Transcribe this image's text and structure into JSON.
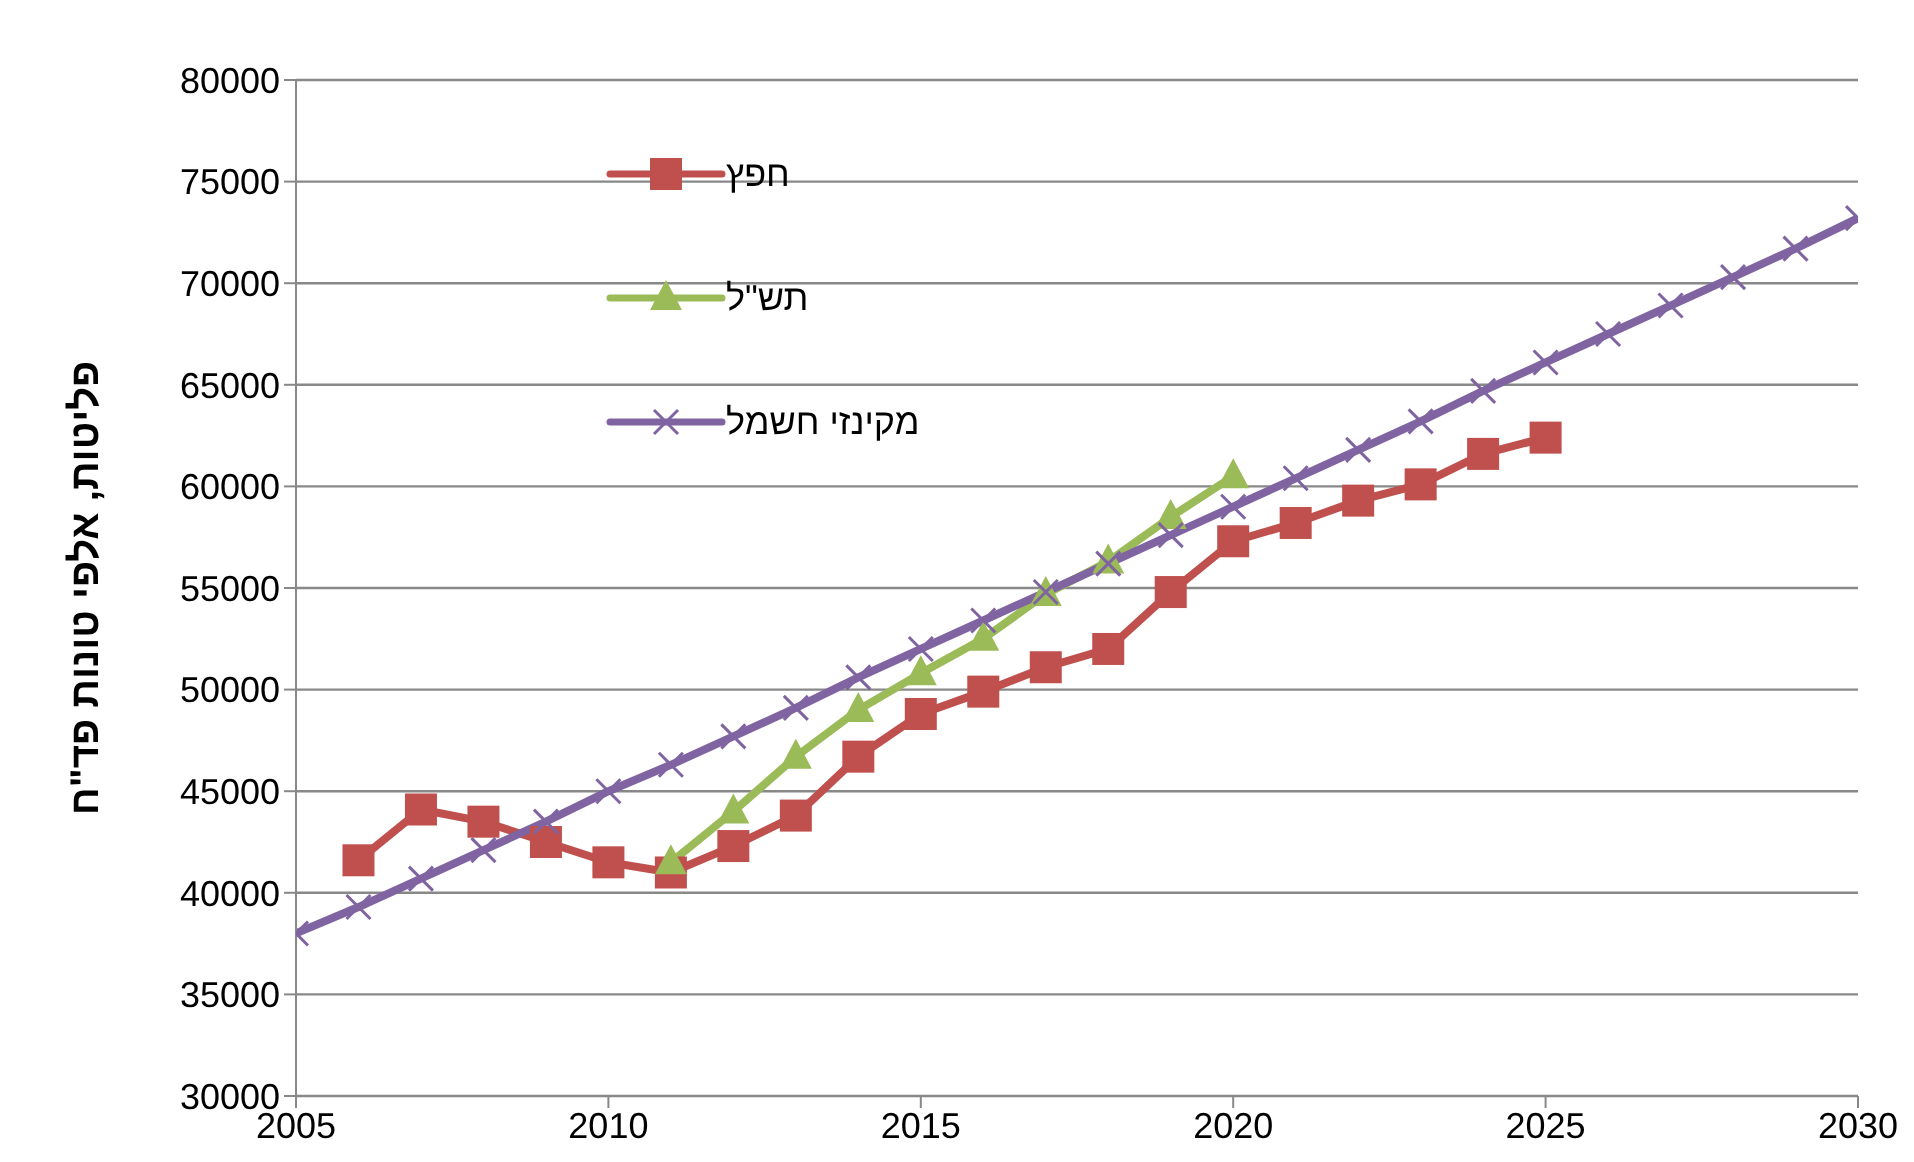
{
  "chart_data": {
    "type": "line",
    "ylabel": "פליטות, אלפי טונות פד\"ח",
    "x": [
      2005,
      2006,
      2007,
      2008,
      2009,
      2010,
      2011,
      2012,
      2013,
      2014,
      2015,
      2016,
      2017,
      2018,
      2019,
      2020,
      2021,
      2022,
      2023,
      2024,
      2025,
      2026,
      2027,
      2028,
      2029,
      2030
    ],
    "series": [
      {
        "name": "חפץ",
        "color": "#c0504d",
        "marker": "square",
        "values": [
          null,
          41600,
          44100,
          43500,
          42500,
          41500,
          41000,
          42300,
          43800,
          46700,
          48800,
          49900,
          51100,
          52000,
          54800,
          57300,
          58200,
          59300,
          60100,
          61600,
          62400,
          null,
          null,
          null,
          null,
          null
        ]
      },
      {
        "name": "תש\"ל",
        "color": "#9bbb59",
        "marker": "triangle",
        "values": [
          null,
          null,
          null,
          null,
          null,
          null,
          41500,
          44000,
          46700,
          49000,
          50800,
          52500,
          54700,
          56300,
          58500,
          60500,
          null,
          null,
          null,
          null,
          null,
          null,
          null,
          null,
          null,
          null
        ]
      },
      {
        "name": "מקינזי חשמל",
        "color": "#8064a2",
        "marker": "cross",
        "values": [
          38000,
          39300,
          40700,
          42100,
          43500,
          45000,
          46300,
          47700,
          49100,
          50600,
          52000,
          53400,
          54800,
          56200,
          57600,
          59000,
          60400,
          61800,
          63200,
          64700,
          66100,
          67500,
          68900,
          70300,
          71700,
          73200
        ]
      }
    ],
    "xlim": [
      2005,
      2030
    ],
    "xticks": [
      2005,
      2010,
      2015,
      2020,
      2025,
      2030
    ],
    "ylim": [
      30000,
      80000
    ],
    "yticks": [
      30000,
      35000,
      40000,
      45000,
      50000,
      55000,
      60000,
      65000,
      70000,
      75000,
      80000
    ],
    "grid": "y",
    "legend": "top left",
    "line_style": "solid"
  }
}
